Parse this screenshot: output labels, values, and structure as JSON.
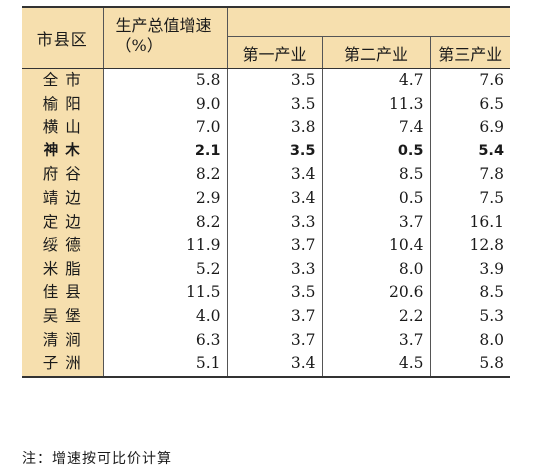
{
  "header": {
    "region": "市县区",
    "gdp_growth": "生产总值增速（%）",
    "primary": "第一产业",
    "secondary": "第二产业",
    "tertiary": "第三产业"
  },
  "rows": [
    {
      "name": "全 市",
      "gdp": "5.8",
      "primary": "3.5",
      "secondary": "4.7",
      "tertiary": "7.6"
    },
    {
      "name": "榆 阳",
      "gdp": "9.0",
      "primary": "3.5",
      "secondary": "11.3",
      "tertiary": "6.5"
    },
    {
      "name": "横 山",
      "gdp": "7.0",
      "primary": "3.8",
      "secondary": "7.4",
      "tertiary": "6.9"
    },
    {
      "name": "神 木",
      "gdp": "2.1",
      "primary": "3.5",
      "secondary": "0.5",
      "tertiary": "5.4",
      "bold": true
    },
    {
      "name": "府 谷",
      "gdp": "8.2",
      "primary": "3.4",
      "secondary": "8.5",
      "tertiary": "7.8"
    },
    {
      "name": "靖 边",
      "gdp": "2.9",
      "primary": "3.4",
      "secondary": "0.5",
      "tertiary": "7.5"
    },
    {
      "name": "定 边",
      "gdp": "8.2",
      "primary": "3.3",
      "secondary": "3.7",
      "tertiary": "16.1"
    },
    {
      "name": "绥 德",
      "gdp": "11.9",
      "primary": "3.7",
      "secondary": "10.4",
      "tertiary": "12.8"
    },
    {
      "name": "米 脂",
      "gdp": "5.2",
      "primary": "3.3",
      "secondary": "8.0",
      "tertiary": "3.9"
    },
    {
      "name": "佳 县",
      "gdp": "11.5",
      "primary": "3.5",
      "secondary": "20.6",
      "tertiary": "8.5"
    },
    {
      "name": "吴 堡",
      "gdp": "4.0",
      "primary": "3.7",
      "secondary": "2.2",
      "tertiary": "5.3"
    },
    {
      "name": "清 涧",
      "gdp": "6.3",
      "primary": "3.7",
      "secondary": "3.7",
      "tertiary": "8.0"
    },
    {
      "name": "子 洲",
      "gdp": "5.1",
      "primary": "3.4",
      "secondary": "4.5",
      "tertiary": "5.8"
    }
  ],
  "footnote": "注：增速按可比价计算",
  "colors": {
    "header_fill": "#f6dfae",
    "rule": "#333333"
  }
}
